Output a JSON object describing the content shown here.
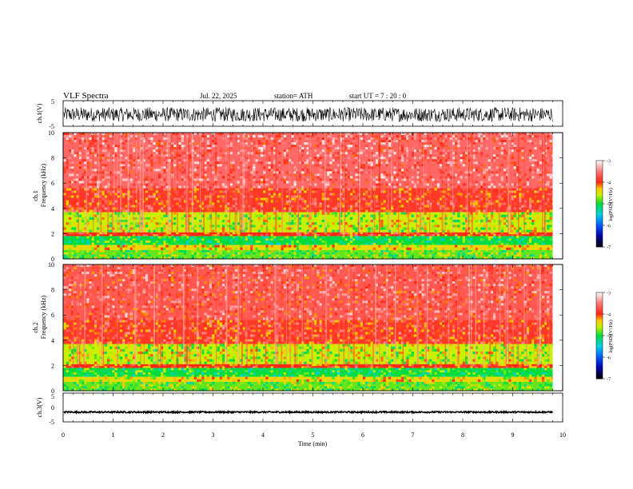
{
  "header": {
    "title": "VLF Spectra",
    "date": "Jul. 22, 2025",
    "station": "station= ATH",
    "start_ut": "start UT = 7 : 20 : 0"
  },
  "chart_data": [
    {
      "type": "line",
      "panel": "ch1-waveform",
      "ylabel": "ch.1(V)",
      "xlim": [
        0,
        10
      ],
      "ylim": [
        -5,
        5
      ],
      "yticks": [
        "5",
        "-5"
      ],
      "x_data_end": 9.8,
      "signal": {
        "center": -0.4,
        "amplitude": 2.8
      }
    },
    {
      "type": "heatmap",
      "panel": "ch1-spectrogram",
      "ylabel": "ch.1",
      "ylabel2": "Frequency (kHz)",
      "xlim": [
        0,
        10
      ],
      "ylim": [
        0,
        10
      ],
      "yticks": [
        "0",
        "2",
        "4",
        "6",
        "8",
        "10"
      ],
      "x_data_end": 9.8,
      "bands": [
        {
          "from": 5.6,
          "to": 10.0,
          "level": -3.6
        },
        {
          "from": 3.7,
          "to": 5.6,
          "level": -3.9
        },
        {
          "from": 2.1,
          "to": 3.7,
          "level": -4.6
        },
        {
          "from": 1.8,
          "to": 2.1,
          "level": -4.0
        },
        {
          "from": 1.1,
          "to": 1.8,
          "level": -5.0
        },
        {
          "from": 0.7,
          "to": 1.1,
          "level": -4.4
        },
        {
          "from": 0.0,
          "to": 0.7,
          "level": -4.8
        }
      ],
      "colorbar": {
        "label": "log(PSD)(V²/Hz)",
        "range": [
          -7,
          -3
        ],
        "ticks": [
          "-3",
          "-4",
          "-5",
          "-6",
          "-7"
        ]
      }
    },
    {
      "type": "heatmap",
      "panel": "ch2-spectrogram",
      "ylabel": "ch.2",
      "ylabel2": "Frequency (kHz)",
      "xlim": [
        0,
        10
      ],
      "ylim": [
        0,
        10
      ],
      "yticks": [
        "0",
        "2",
        "4",
        "6",
        "8",
        "10"
      ],
      "x_data_end": 9.8,
      "bands": [
        {
          "from": 5.6,
          "to": 10.0,
          "level": -3.7
        },
        {
          "from": 3.7,
          "to": 5.6,
          "level": -3.9
        },
        {
          "from": 2.1,
          "to": 3.7,
          "level": -4.6
        },
        {
          "from": 1.8,
          "to": 2.1,
          "level": -4.0
        },
        {
          "from": 1.1,
          "to": 1.8,
          "level": -5.0
        },
        {
          "from": 0.7,
          "to": 1.1,
          "level": -4.4
        },
        {
          "from": 0.0,
          "to": 0.7,
          "level": -4.8
        }
      ],
      "colorbar": {
        "label": "log(PSD)(V²/Hz)",
        "range": [
          -7,
          -3
        ],
        "ticks": [
          "-3",
          "-4",
          "-5",
          "-6",
          "-7"
        ]
      }
    },
    {
      "type": "line",
      "panel": "ch3-waveform",
      "ylabel": "ch.3(V)",
      "xlim": [
        0,
        10
      ],
      "ylim": [
        -5,
        5
      ],
      "yticks": [
        "5",
        "0",
        "-5"
      ],
      "x_data_end": 9.8,
      "signal": {
        "center": -1.6,
        "amplitude": 0.25
      }
    }
  ],
  "xaxis": {
    "label": "Time (min)",
    "ticks": [
      "0",
      "1",
      "2",
      "3",
      "4",
      "5",
      "6",
      "7",
      "8",
      "9",
      "10"
    ]
  }
}
